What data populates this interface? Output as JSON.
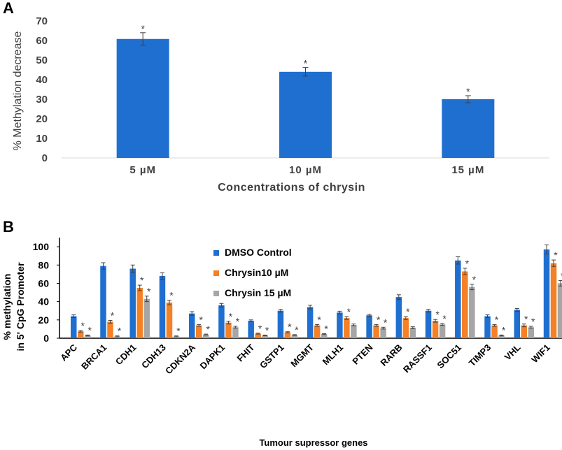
{
  "chart_data": [
    {
      "panel": "A",
      "type": "bar",
      "categories": [
        "5 µM",
        "10 µM",
        "15 µM"
      ],
      "values": [
        60.8,
        44,
        30
      ],
      "errors": [
        3.2,
        2.2,
        1.8
      ],
      "significance": [
        "*",
        "*",
        "*"
      ],
      "color": "#1f6fd0",
      "title": "",
      "xlabel": "Concentrations of chrysin",
      "ylabel": "% Methylation decrease",
      "ylim": [
        0,
        70
      ],
      "yticks": [
        0,
        10,
        20,
        30,
        40,
        50,
        60,
        70
      ],
      "grid": false
    },
    {
      "panel": "B",
      "type": "bar",
      "categories": [
        "APC",
        "BRCA1",
        "CDH1",
        "CDH13",
        "CDKN2A",
        "DAPK1",
        "FHIT",
        "GSTP1",
        "MGMT",
        "MLH1",
        "PTEN",
        "RARB",
        "RASSF1",
        "SOC51",
        "TIMP3",
        "VHL",
        "WIF1"
      ],
      "series": [
        {
          "name": "DMSO Control",
          "color": "#1f6fd0",
          "values": [
            24,
            79,
            76,
            68,
            27,
            36,
            19,
            30,
            34,
            28,
            25,
            45,
            30,
            85,
            24,
            31,
            97
          ],
          "errors": [
            1.5,
            3.5,
            4,
            3.5,
            2,
            2,
            1,
            1.5,
            2,
            1.5,
            1,
            2.5,
            1.5,
            4,
            1.5,
            1.5,
            5
          ],
          "stars": [
            false,
            false,
            false,
            false,
            false,
            false,
            false,
            false,
            false,
            false,
            false,
            false,
            false,
            false,
            false,
            false,
            false
          ]
        },
        {
          "name": "Chrysin10 µM",
          "color": "#f58025",
          "values": [
            7.5,
            18,
            55,
            39,
            14,
            17,
            5,
            6.5,
            14,
            22,
            14,
            22,
            19,
            73,
            14,
            14,
            82
          ],
          "errors": [
            0.8,
            1.5,
            3,
            2.5,
            1,
            1.5,
            0.5,
            0.6,
            1,
            1.5,
            1,
            1.5,
            1.5,
            3.5,
            1,
            1.5,
            3.5
          ],
          "stars": [
            true,
            true,
            true,
            true,
            true,
            true,
            true,
            true,
            true,
            true,
            true,
            true,
            true,
            true,
            true,
            true,
            true
          ]
        },
        {
          "name": "Chrysin 15 µM",
          "color": "#a6a6a6",
          "values": [
            3,
            2,
            43,
            2,
            4,
            12,
            3,
            3.5,
            4.5,
            14.5,
            11,
            11.5,
            15,
            56,
            3,
            12,
            60
          ],
          "errors": [
            0.5,
            0.5,
            3,
            0.5,
            0.5,
            1,
            0.4,
            0.4,
            0.5,
            1,
            1,
            1,
            1,
            3,
            0.5,
            1,
            3
          ],
          "stars": [
            true,
            true,
            true,
            true,
            true,
            true,
            true,
            true,
            true,
            false,
            true,
            false,
            true,
            true,
            true,
            true,
            true
          ]
        }
      ],
      "xlabel": "Tumour supressor genes",
      "ylabel": [
        "% methylation",
        "in 5' CpG Promoter"
      ],
      "ylim": [
        0,
        110
      ],
      "yticks": [
        0,
        20,
        40,
        60,
        80,
        100
      ],
      "legend_position": "top-center",
      "grid": false
    }
  ],
  "panels": {
    "A": {
      "letter": "A"
    },
    "B": {
      "letter": "B"
    }
  },
  "significance_symbol": "*"
}
